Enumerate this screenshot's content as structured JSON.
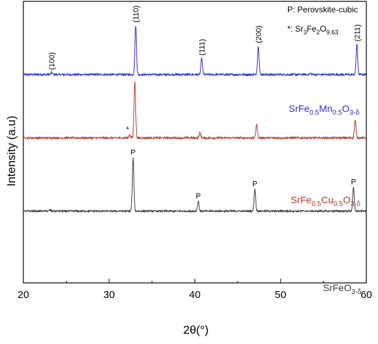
{
  "legend_notes": {
    "perovskite": "P: Perovskite-cubic",
    "star_prefix": "*: Sr",
    "star_sub1": "3",
    "star_mid1": "Fe",
    "star_sub2": "2",
    "star_mid2": "O",
    "star_sub3": "9.63"
  },
  "chart_data": {
    "type": "line",
    "xlabel": "2θ(°)",
    "ylabel": "Intensity (a.u)",
    "xlim": [
      20,
      60
    ],
    "x_ticks": [
      "20",
      "30",
      "40",
      "50",
      "60"
    ],
    "y_ticks_shown": false,
    "series": [
      {
        "name": "SrFe0.5Mn0.5O3-δ",
        "label_parts": [
          "SrFe",
          "0.5",
          "Mn",
          "0.5",
          "O",
          "3-δ"
        ],
        "color": "#2b2bcc",
        "offset": 0.74,
        "noise": 0.0035,
        "peaks": [
          {
            "pos": 23.3,
            "height": 0.007,
            "label": "(100)"
          },
          {
            "pos": 33.1,
            "height": 0.175,
            "label": "(110)"
          },
          {
            "pos": 40.8,
            "height": 0.058,
            "label": "(111)"
          },
          {
            "pos": 47.4,
            "height": 0.102,
            "label": "(200)"
          },
          {
            "pos": 53.5,
            "height": 0.004,
            "label": ""
          },
          {
            "pos": 58.9,
            "height": 0.108,
            "label": "(211)"
          }
        ]
      },
      {
        "name": "SrFe0.5Cu0.5O3-δ",
        "label_parts": [
          "SrFe",
          "0.5",
          "Cu",
          "0.5",
          "O",
          "3-δ"
        ],
        "color": "#b53a2a",
        "offset": 0.515,
        "noise": 0.0035,
        "peaks": [
          {
            "pos": 32.4,
            "height": 0.012,
            "label": "*"
          },
          {
            "pos": 33.0,
            "height": 0.205,
            "label": ""
          },
          {
            "pos": 40.6,
            "height": 0.018,
            "label": ""
          },
          {
            "pos": 47.2,
            "height": 0.048,
            "label": ""
          },
          {
            "pos": 58.7,
            "height": 0.063,
            "label": ""
          }
        ]
      },
      {
        "name": "SrFeO3-δ",
        "label_parts": [
          "SrFeO",
          "3-δ",
          "",
          "",
          "",
          ""
        ],
        "color": "#3a3a3a",
        "offset": 0.255,
        "noise": 0.003,
        "peaks": [
          {
            "pos": 23.1,
            "height": 0.004,
            "label": ""
          },
          {
            "pos": 32.8,
            "height": 0.19,
            "label": "P"
          },
          {
            "pos": 40.4,
            "height": 0.035,
            "label": "P"
          },
          {
            "pos": 47.0,
            "height": 0.078,
            "label": "P"
          },
          {
            "pos": 58.5,
            "height": 0.085,
            "label": "P"
          }
        ]
      }
    ]
  }
}
